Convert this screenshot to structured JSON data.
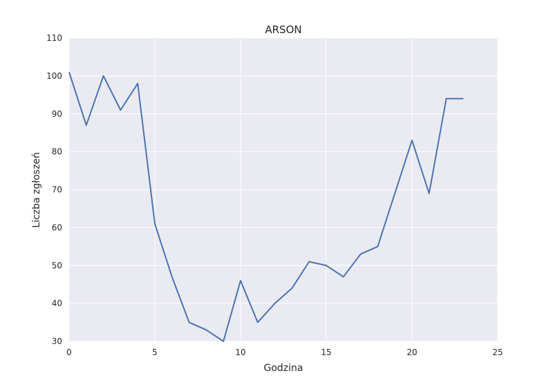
{
  "chart_data": {
    "type": "line",
    "title": "ARSON",
    "xlabel": "Godzina",
    "ylabel": "Liczba zgłoszeń",
    "xlim": [
      0,
      25
    ],
    "ylim": [
      30,
      110
    ],
    "xticks": [
      0,
      5,
      10,
      15,
      20,
      25
    ],
    "yticks": [
      30,
      40,
      50,
      60,
      70,
      80,
      90,
      100,
      110
    ],
    "grid": true,
    "series": [
      {
        "x": [
          0,
          1,
          2,
          3,
          4,
          5,
          6,
          7,
          8,
          9,
          10,
          11,
          12,
          13,
          14,
          15,
          16,
          17,
          18,
          19,
          20,
          21,
          22,
          23
        ],
        "values": [
          101,
          87,
          100,
          91,
          98,
          61,
          47,
          35,
          33,
          30,
          46,
          35,
          40,
          44,
          51,
          50,
          47,
          53,
          55,
          69,
          83,
          69,
          94,
          94
        ]
      }
    ]
  },
  "colors": {
    "plot_background": "#eaeaf2",
    "grid": "#ffffff",
    "line": "#4c72b0"
  }
}
